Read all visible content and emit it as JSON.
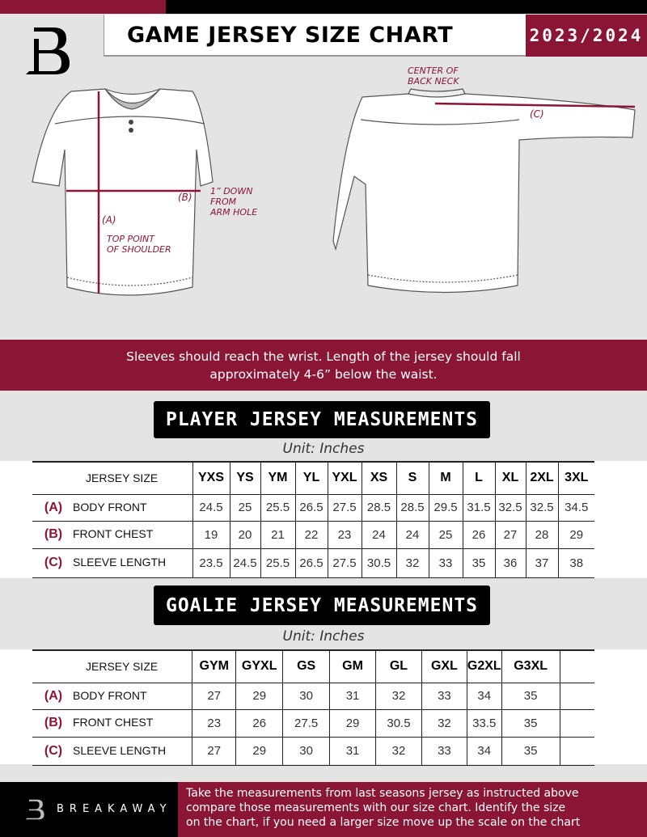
{
  "header": {
    "title": "GAME JERSEY SIZE CHART",
    "season": "2023/2024"
  },
  "colors": {
    "brand": "#8a1535",
    "black": "#000000",
    "background": "#e4e4e5"
  },
  "diagram": {
    "front_labels": {
      "a": "(A)",
      "a_note": [
        "TOP POINT",
        "OF SHOULDER"
      ],
      "b": "(B)",
      "b_note": [
        "1” DOWN",
        "FROM",
        "ARM HOLE"
      ]
    },
    "back_labels": {
      "c": "(C)",
      "c_note": [
        "CENTER OF",
        "BACK NECK"
      ]
    }
  },
  "instructions": [
    "Sleeves should reach the wrist. Length of the jersey should fall",
    "approximately 4-6” below the waist."
  ],
  "player": {
    "heading": "PLAYER JERSEY MEASUREMENTS",
    "unit": "Unit: Inches",
    "size_label": "JERSEY SIZE",
    "sizes": [
      "YXS",
      "YS",
      "YM",
      "YL",
      "YXL",
      "XS",
      "S",
      "M",
      "L",
      "XL",
      "2XL",
      "3XL"
    ],
    "rows": [
      {
        "letter": "(A)",
        "label": "BODY FRONT",
        "values": [
          "24.5",
          "25",
          "25.5",
          "26.5",
          "27.5",
          "28.5",
          "28.5",
          "29.5",
          "31.5",
          "32.5",
          "32.5",
          "34.5"
        ]
      },
      {
        "letter": "(B)",
        "label": "FRONT CHEST",
        "values": [
          "19",
          "20",
          "21",
          "22",
          "23",
          "24",
          "24",
          "25",
          "26",
          "27",
          "28",
          "29"
        ]
      },
      {
        "letter": "(C)",
        "label": "SLEEVE LENGTH",
        "values": [
          "23.5",
          "24.5",
          "25.5",
          "26.5",
          "27.5",
          "30.5",
          "32",
          "33",
          "35",
          "36",
          "37",
          "38"
        ]
      }
    ]
  },
  "goalie": {
    "heading": "GOALIE JERSEY MEASUREMENTS",
    "unit": "Unit: Inches",
    "size_label": "JERSEY SIZE",
    "sizes": [
      "GYM",
      "GYXL",
      "GS",
      "GM",
      "GL",
      "GXL",
      "G2XL",
      "G3XL",
      ""
    ],
    "rows": [
      {
        "letter": "(A)",
        "label": "BODY FRONT",
        "values": [
          "27",
          "29",
          "30",
          "31",
          "32",
          "33",
          "34",
          "35",
          ""
        ]
      },
      {
        "letter": "(B)",
        "label": "FRONT CHEST",
        "values": [
          "23",
          "26",
          "27.5",
          "29",
          "30.5",
          "32",
          "33.5",
          "35",
          ""
        ]
      },
      {
        "letter": "(C)",
        "label": "SLEEVE LENGTH",
        "values": [
          "27",
          "29",
          "30",
          "31",
          "32",
          "33",
          "34",
          "35",
          ""
        ]
      }
    ]
  },
  "footer": {
    "brand": "BREAKAWAY",
    "text": [
      "Take the measurements from last seasons jersey as instructed above",
      "compare those measurements  with our size chart. Identify the size",
      "on the chart, if you need a larger size move up the scale on the chart"
    ]
  }
}
